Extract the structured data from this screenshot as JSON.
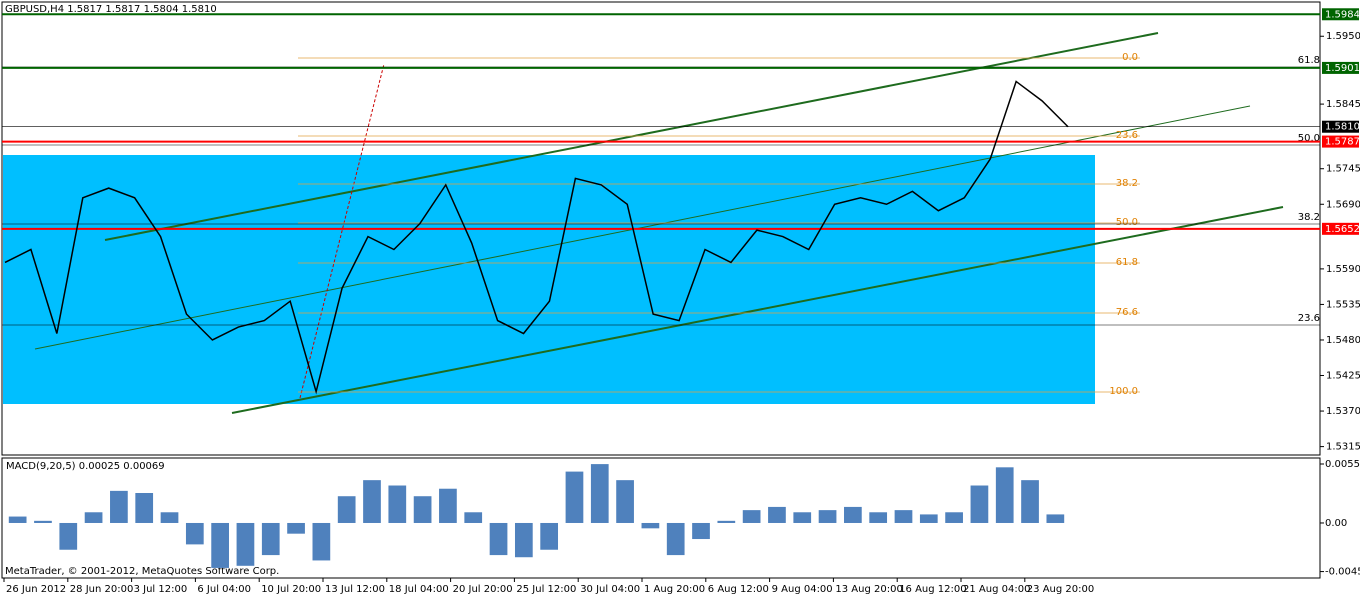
{
  "window": {
    "header": "GBPUSD,H4  1.5817 1.5817 1.5804 1.5810",
    "footer": "MetaTrader, © 2001-2012, MetaQuotes Software Corp.",
    "price_axis": {
      "ylim": [
        1.5302,
        1.6003
      ],
      "ticks": [
        {
          "value": 1.595,
          "label": "1.5950"
        },
        {
          "value": 1.5845,
          "label": "1.5845"
        },
        {
          "value": 1.5745,
          "label": "1.5745"
        },
        {
          "value": 1.569,
          "label": "1.5690"
        },
        {
          "value": 1.559,
          "label": "1.5590"
        },
        {
          "value": 1.5535,
          "label": "1.5535"
        },
        {
          "value": 1.548,
          "label": "1.5480"
        },
        {
          "value": 1.5425,
          "label": "1.5425"
        },
        {
          "value": 1.537,
          "label": "1.5370"
        },
        {
          "value": 1.5315,
          "label": "1.5315"
        }
      ]
    },
    "levels": [
      {
        "value": 1.5984,
        "label": "1.5984",
        "color": "#006400"
      },
      {
        "value": 1.5901,
        "label": "1.5901",
        "color": "#006400"
      },
      {
        "value": 1.581,
        "label": "1.5810",
        "color": "#000000"
      },
      {
        "value": 1.5787,
        "label": "1.5787",
        "color": "#ff0000"
      },
      {
        "value": 1.5652,
        "label": "1.5652",
        "color": "#ff0000"
      }
    ],
    "fib_labels": [
      "0.0",
      "23.6",
      "38.2",
      "50.0",
      "61.8",
      "76.6",
      "100.0"
    ],
    "fib_labels_right": [
      "61.8",
      "50.0",
      "38.2",
      "23.6"
    ],
    "time_labels": [
      "26 Jun 2012",
      "28 Jun 20:00",
      "3 Jul 12:00",
      "6 Jul 04:00",
      "10 Jul 20:00",
      "13 Jul 12:00",
      "18 Jul 04:00",
      "20 Jul 20:00",
      "25 Jul 12:00",
      "30 Jul 04:00",
      "1 Aug 20:00",
      "6 Aug 12:00",
      "9 Aug 04:00",
      "13 Aug 20:00",
      "16 Aug 12:00",
      "21 Aug 04:00",
      "23 Aug 20:00"
    ],
    "close": {
      "color": "#000000",
      "values": [
        1.56,
        1.562,
        1.549,
        1.57,
        1.5715,
        1.57,
        1.564,
        1.552,
        1.548,
        1.55,
        1.551,
        1.554,
        1.54,
        1.556,
        1.564,
        1.562,
        1.566,
        1.572,
        1.563,
        1.551,
        1.549,
        1.554,
        1.573,
        1.572,
        1.569,
        1.552,
        1.551,
        1.562,
        1.56,
        1.565,
        1.564,
        1.562,
        1.569,
        1.57,
        1.569,
        1.571,
        1.568,
        1.57,
        1.576,
        1.588,
        1.585,
        1.581
      ]
    },
    "macd": {
      "label": "MACD(9,20,5) 0.00025 0.00069",
      "color": "#4f81bd",
      "ylim": [
        -0.00514,
        0.00607
      ],
      "ticks": [
        {
          "value": 0.00551,
          "label": "0.00551"
        },
        {
          "value": 0,
          "label": "0.00"
        },
        {
          "value": -0.00454,
          "label": "-0.00454"
        }
      ],
      "values": [
        0.0006,
        0.0002,
        -0.0025,
        0.001,
        0.003,
        0.0028,
        0.001,
        -0.002,
        -0.0042,
        -0.004,
        -0.003,
        -0.001,
        -0.0035,
        0.0025,
        0.004,
        0.0035,
        0.0025,
        0.0032,
        0.001,
        -0.003,
        -0.0032,
        -0.0025,
        0.0048,
        0.0055,
        0.004,
        -0.0005,
        -0.003,
        -0.0015,
        0.0002,
        0.0012,
        0.0015,
        0.001,
        0.0012,
        0.0015,
        0.001,
        0.0012,
        0.0008,
        0.001,
        0.0035,
        0.0052,
        0.004,
        0.0008
      ]
    }
  }
}
